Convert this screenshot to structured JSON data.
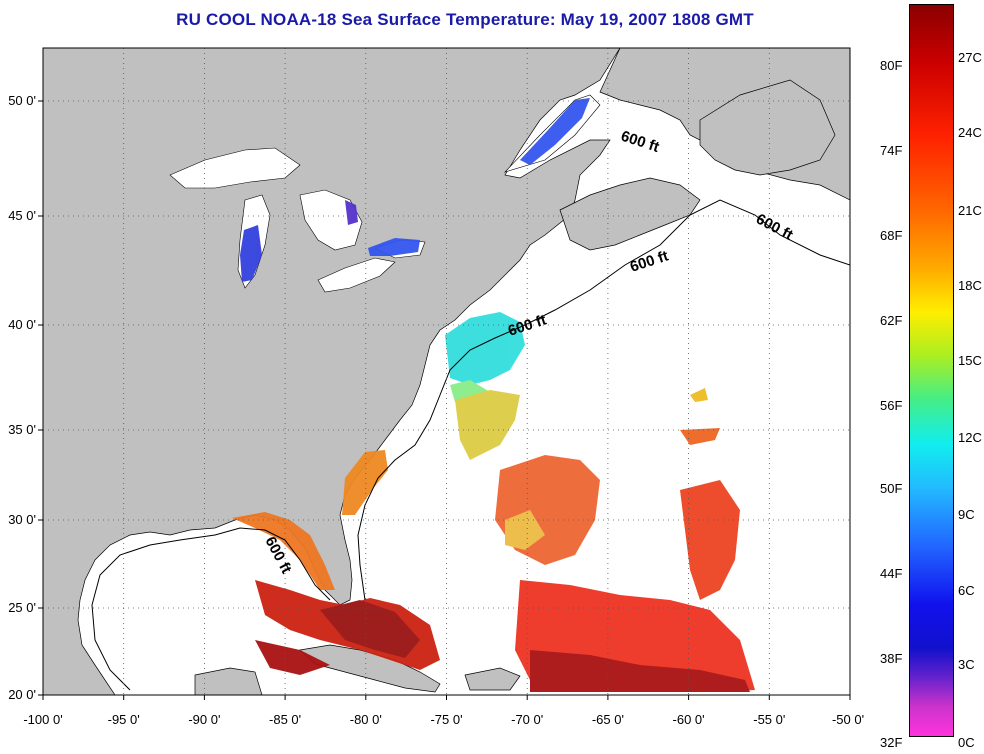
{
  "title": "RU COOL  NOAA-18  Sea Surface Temperature:  May 19, 2007 1808 GMT",
  "map": {
    "lon_min": -100,
    "lon_max": -50,
    "lat_min": 20,
    "lat_max": 52.5,
    "lon_ticks": [
      "-100 0'",
      "-95 0'",
      "-90 0'",
      "-85 0'",
      "-80 0'",
      "-75 0'",
      "-70 0'",
      "-65 0'",
      "-60 0'",
      "-55 0'",
      "-50 0'"
    ],
    "lat_ticks": [
      "20 0'",
      "25 0'",
      "30 0'",
      "35 0'",
      "40 0'",
      "45 0'",
      "50 0'"
    ],
    "contour_labels": [
      "600 ft",
      "600 ft",
      "600 ft",
      "600 ft",
      "600 ft"
    ],
    "land_color": "#c0c0c0",
    "water_color": "#ffffff",
    "grid": "dotted"
  },
  "colorbar": {
    "fahrenheit": [
      "80F",
      "74F",
      "68F",
      "62F",
      "56F",
      "50F",
      "44F",
      "38F",
      "32F"
    ],
    "celsius": [
      "27C",
      "24C",
      "21C",
      "18C",
      "15C",
      "12C",
      "9C",
      "6C",
      "3C",
      "0C"
    ],
    "top_color": "#8b0000",
    "bottom_color": "#ff33cc"
  }
}
